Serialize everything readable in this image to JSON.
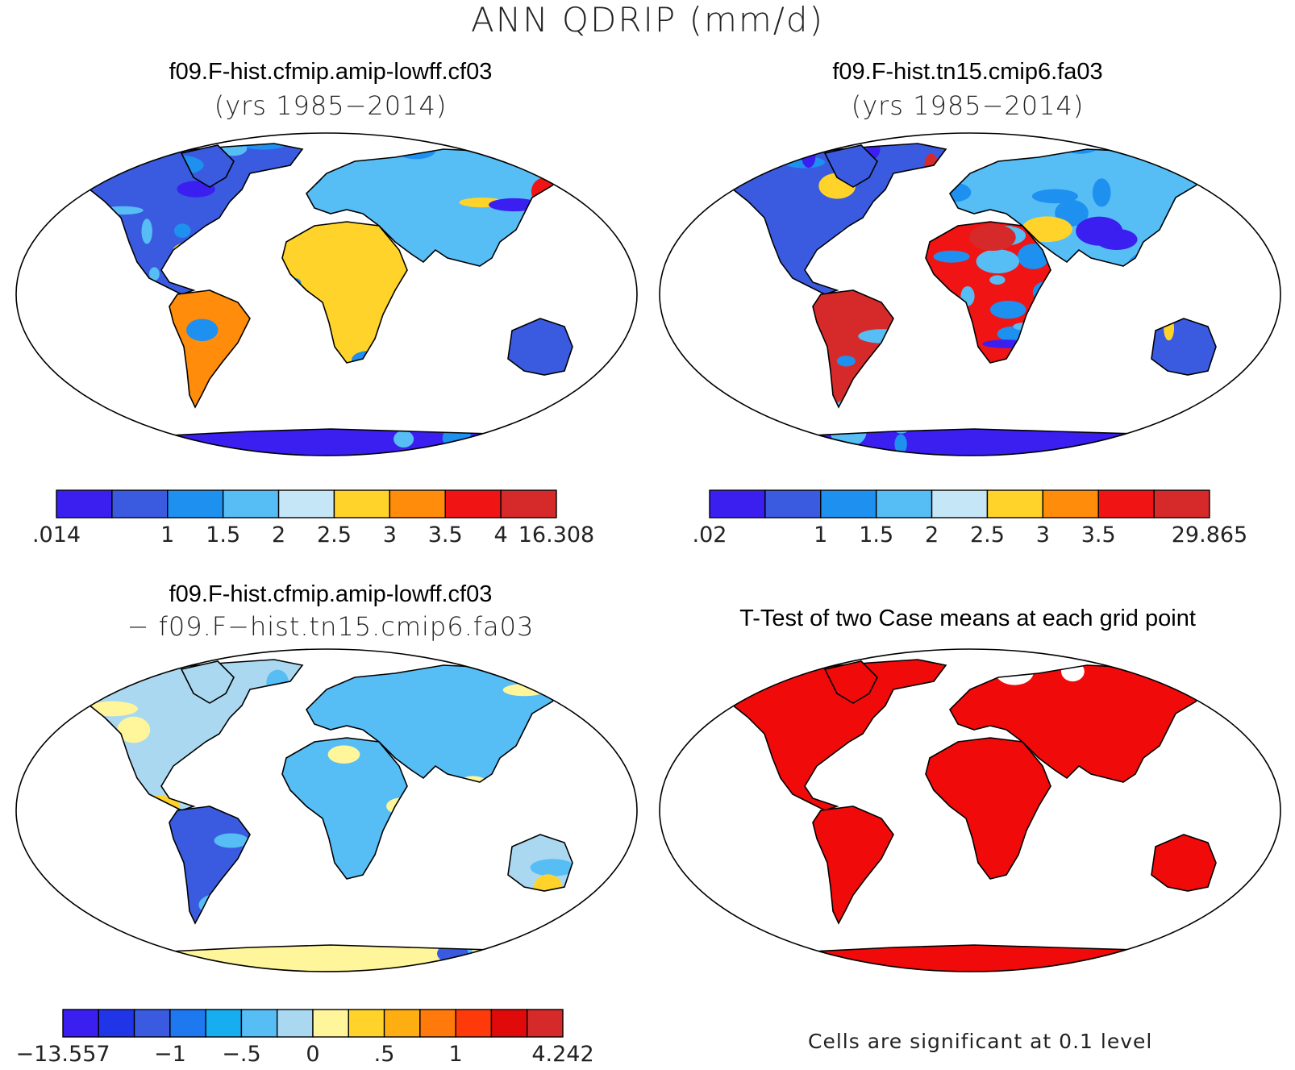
{
  "title": "ANN QDRIP (mm/d)",
  "panels": [
    {
      "id": "case1",
      "title_line1": "f09.F-hist.cfmip.amip-lowff.cf03",
      "title_line2": "(yrs 1985−2014)",
      "colorbar": {
        "colors": [
          "#3a1ff0",
          "#3a5be0",
          "#1e90f0",
          "#56bdf5",
          "#c5e6f7",
          "#ffd32a",
          "#ff8c0a",
          "#f01414",
          "#d62a2a"
        ],
        "tick_labels": [
          ".014",
          "",
          "1",
          "1.5",
          "2",
          "2.5",
          "3",
          "3.5",
          "4",
          "16.308"
        ]
      },
      "map_palette": "precip"
    },
    {
      "id": "case2",
      "title_line1": "f09.F-hist.tn15.cmip6.fa03",
      "title_line2": "(yrs 1985−2014)",
      "colorbar": {
        "colors": [
          "#3a1ff0",
          "#3a5be0",
          "#1e90f0",
          "#56bdf5",
          "#c5e6f7",
          "#ffd32a",
          "#ff8c0a",
          "#f01414",
          "#d62a2a"
        ],
        "tick_labels": [
          ".02",
          "",
          "1",
          "1.5",
          "2",
          "2.5",
          "3",
          "3.5",
          "",
          "29.865"
        ]
      },
      "map_palette": "precip-wet"
    },
    {
      "id": "diff",
      "title_line1": "f09.F-hist.cfmip.amip-lowff.cf03",
      "title_line2": "− f09.F−hist.tn15.cmip6.fa03",
      "colorbar": {
        "colors": [
          "#3a1ff0",
          "#2035e8",
          "#3a5be0",
          "#1e78f0",
          "#16aef0",
          "#56bdf5",
          "#a9d8f0",
          "#fff59a",
          "#ffd32a",
          "#ffae12",
          "#ff7a0a",
          "#ff3a0a",
          "#e00a0a",
          "#d62a2a"
        ],
        "tick_labels": [
          "−13.557",
          "",
          "",
          "−1",
          "",
          "−.5",
          "",
          "0",
          "",
          ".5",
          "",
          "1",
          "",
          "",
          "4.242"
        ]
      },
      "map_palette": "diff"
    },
    {
      "id": "ttest",
      "title_line1": "T-Test of two Case means at each grid point",
      "title_line2": "",
      "note": "Cells are significant at 0.1 level",
      "map_palette": "sig"
    }
  ]
}
